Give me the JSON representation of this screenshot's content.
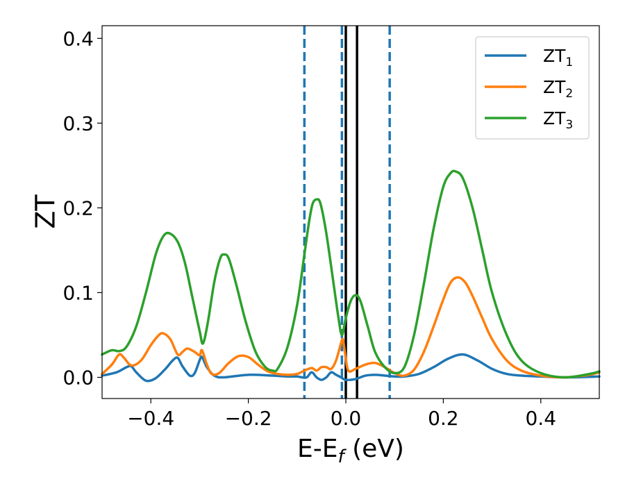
{
  "chart_data": {
    "type": "line",
    "xlabel": "E-E",
    "xlabel_sub": "f",
    "xlabel_unit": " (eV)",
    "ylabel": "ZT",
    "xlim": [
      -0.5,
      0.52
    ],
    "ylim": [
      -0.025,
      0.415
    ],
    "xticks": [
      -0.4,
      -0.2,
      0.0,
      0.2,
      0.4
    ],
    "xtick_labels": [
      "−0.4",
      "−0.2",
      "0.0",
      "0.2",
      "0.4"
    ],
    "yticks": [
      0.0,
      0.1,
      0.2,
      0.3,
      0.4
    ],
    "ytick_labels": [
      "0.0",
      "0.1",
      "0.2",
      "0.3",
      "0.4"
    ],
    "grid": false,
    "legend_position": "top-right",
    "vlines": [
      {
        "x": -0.085,
        "style": "dashed",
        "color": "#1f77b4"
      },
      {
        "x": -0.008,
        "style": "dashed",
        "color": "#1f77b4"
      },
      {
        "x": 0.0,
        "style": "solid",
        "color": "#000000"
      },
      {
        "x": 0.023,
        "style": "solid",
        "color": "#000000"
      },
      {
        "x": 0.09,
        "style": "dashed",
        "color": "#1f77b4"
      }
    ],
    "series": [
      {
        "name": "ZT",
        "name_sub": "1",
        "color": "#1f77b4",
        "points": [
          [
            -0.5,
            0.002
          ],
          [
            -0.47,
            0.006
          ],
          [
            -0.45,
            0.012
          ],
          [
            -0.44,
            0.013
          ],
          [
            -0.43,
            0.006
          ],
          [
            -0.41,
            -0.004
          ],
          [
            -0.39,
            -0.001
          ],
          [
            -0.37,
            0.01
          ],
          [
            -0.355,
            0.02
          ],
          [
            -0.345,
            0.023
          ],
          [
            -0.335,
            0.013
          ],
          [
            -0.32,
            0.002
          ],
          [
            -0.31,
            0.005
          ],
          [
            -0.3,
            0.02
          ],
          [
            -0.295,
            0.024
          ],
          [
            -0.285,
            0.012
          ],
          [
            -0.27,
            0.002
          ],
          [
            -0.25,
            0.0
          ],
          [
            -0.2,
            0.003
          ],
          [
            -0.15,
            0.002
          ],
          [
            -0.12,
            0.001
          ],
          [
            -0.1,
            0.001
          ],
          [
            -0.09,
            0.0
          ],
          [
            -0.08,
            0.0
          ],
          [
            -0.07,
            0.006
          ],
          [
            -0.06,
            0.0
          ],
          [
            -0.05,
            -0.003
          ],
          [
            -0.04,
            0.0
          ],
          [
            -0.03,
            0.006
          ],
          [
            -0.02,
            0.003
          ],
          [
            -0.01,
            0.0
          ],
          [
            0.0,
            -0.003
          ],
          [
            0.02,
            -0.002
          ],
          [
            0.04,
            0.002
          ],
          [
            0.06,
            0.003
          ],
          [
            0.08,
            0.002
          ],
          [
            0.1,
            0.001
          ],
          [
            0.12,
            0.001
          ],
          [
            0.15,
            0.004
          ],
          [
            0.18,
            0.012
          ],
          [
            0.21,
            0.022
          ],
          [
            0.24,
            0.027
          ],
          [
            0.27,
            0.02
          ],
          [
            0.3,
            0.01
          ],
          [
            0.33,
            0.004
          ],
          [
            0.36,
            0.002
          ],
          [
            0.4,
            0.001
          ],
          [
            0.45,
            0.0
          ],
          [
            0.52,
            0.001
          ]
        ]
      },
      {
        "name": "ZT",
        "name_sub": "2",
        "color": "#ff7f0e",
        "points": [
          [
            -0.5,
            0.004
          ],
          [
            -0.48,
            0.015
          ],
          [
            -0.465,
            0.027
          ],
          [
            -0.455,
            0.023
          ],
          [
            -0.44,
            0.014
          ],
          [
            -0.42,
            0.02
          ],
          [
            -0.4,
            0.038
          ],
          [
            -0.385,
            0.049
          ],
          [
            -0.375,
            0.052
          ],
          [
            -0.36,
            0.045
          ],
          [
            -0.345,
            0.027
          ],
          [
            -0.335,
            0.03
          ],
          [
            -0.325,
            0.034
          ],
          [
            -0.31,
            0.03
          ],
          [
            -0.3,
            0.026
          ],
          [
            -0.295,
            0.032
          ],
          [
            -0.285,
            0.015
          ],
          [
            -0.275,
            0.004
          ],
          [
            -0.26,
            0.005
          ],
          [
            -0.24,
            0.017
          ],
          [
            -0.22,
            0.025
          ],
          [
            -0.2,
            0.024
          ],
          [
            -0.18,
            0.015
          ],
          [
            -0.16,
            0.007
          ],
          [
            -0.14,
            0.004
          ],
          [
            -0.12,
            0.003
          ],
          [
            -0.1,
            0.004
          ],
          [
            -0.085,
            0.008
          ],
          [
            -0.07,
            0.011
          ],
          [
            -0.06,
            0.008
          ],
          [
            -0.05,
            0.012
          ],
          [
            -0.04,
            0.012
          ],
          [
            -0.03,
            0.01
          ],
          [
            -0.02,
            0.02
          ],
          [
            -0.01,
            0.04
          ],
          [
            -0.006,
            0.045
          ],
          [
            -0.002,
            0.03
          ],
          [
            0.005,
            0.008
          ],
          [
            0.02,
            0.01
          ],
          [
            0.04,
            0.015
          ],
          [
            0.06,
            0.017
          ],
          [
            0.08,
            0.012
          ],
          [
            0.1,
            0.005
          ],
          [
            0.12,
            0.002
          ],
          [
            0.14,
            0.009
          ],
          [
            0.16,
            0.03
          ],
          [
            0.18,
            0.06
          ],
          [
            0.2,
            0.092
          ],
          [
            0.215,
            0.112
          ],
          [
            0.23,
            0.118
          ],
          [
            0.245,
            0.112
          ],
          [
            0.26,
            0.096
          ],
          [
            0.28,
            0.07
          ],
          [
            0.3,
            0.045
          ],
          [
            0.33,
            0.02
          ],
          [
            0.36,
            0.008
          ],
          [
            0.4,
            0.002
          ],
          [
            0.45,
            0.0
          ],
          [
            0.5,
            0.003
          ],
          [
            0.52,
            0.006
          ]
        ]
      },
      {
        "name": "ZT",
        "name_sub": "3",
        "color": "#2ca02c",
        "points": [
          [
            -0.5,
            0.027
          ],
          [
            -0.48,
            0.032
          ],
          [
            -0.465,
            0.031
          ],
          [
            -0.45,
            0.036
          ],
          [
            -0.43,
            0.06
          ],
          [
            -0.41,
            0.1
          ],
          [
            -0.39,
            0.145
          ],
          [
            -0.375,
            0.166
          ],
          [
            -0.362,
            0.17
          ],
          [
            -0.345,
            0.16
          ],
          [
            -0.33,
            0.135
          ],
          [
            -0.315,
            0.095
          ],
          [
            -0.3,
            0.055
          ],
          [
            -0.293,
            0.04
          ],
          [
            -0.283,
            0.065
          ],
          [
            -0.27,
            0.112
          ],
          [
            -0.258,
            0.14
          ],
          [
            -0.25,
            0.145
          ],
          [
            -0.24,
            0.14
          ],
          [
            -0.225,
            0.11
          ],
          [
            -0.205,
            0.065
          ],
          [
            -0.185,
            0.03
          ],
          [
            -0.165,
            0.012
          ],
          [
            -0.15,
            0.008
          ],
          [
            -0.14,
            0.01
          ],
          [
            -0.12,
            0.035
          ],
          [
            -0.1,
            0.085
          ],
          [
            -0.085,
            0.145
          ],
          [
            -0.075,
            0.185
          ],
          [
            -0.068,
            0.205
          ],
          [
            -0.06,
            0.21
          ],
          [
            -0.052,
            0.205
          ],
          [
            -0.04,
            0.17
          ],
          [
            -0.025,
            0.11
          ],
          [
            -0.015,
            0.07
          ],
          [
            -0.008,
            0.05
          ],
          [
            0.0,
            0.07
          ],
          [
            0.01,
            0.09
          ],
          [
            0.02,
            0.097
          ],
          [
            0.03,
            0.09
          ],
          [
            0.045,
            0.06
          ],
          [
            0.06,
            0.03
          ],
          [
            0.08,
            0.012
          ],
          [
            0.1,
            0.005
          ],
          [
            0.12,
            0.012
          ],
          [
            0.14,
            0.05
          ],
          [
            0.16,
            0.11
          ],
          [
            0.18,
            0.175
          ],
          [
            0.2,
            0.225
          ],
          [
            0.215,
            0.241
          ],
          [
            0.225,
            0.243
          ],
          [
            0.24,
            0.235
          ],
          [
            0.26,
            0.2
          ],
          [
            0.28,
            0.15
          ],
          [
            0.3,
            0.1
          ],
          [
            0.33,
            0.05
          ],
          [
            0.36,
            0.02
          ],
          [
            0.4,
            0.005
          ],
          [
            0.45,
            0.0
          ],
          [
            0.5,
            0.004
          ],
          [
            0.52,
            0.007
          ]
        ]
      }
    ]
  }
}
